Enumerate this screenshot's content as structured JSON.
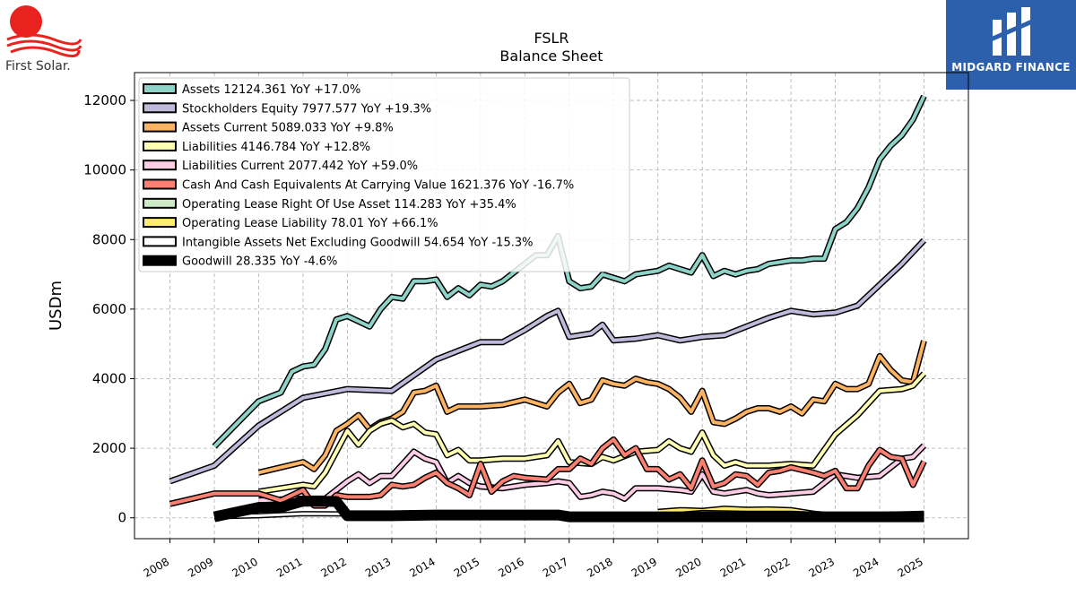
{
  "logos": {
    "left_text": "First Solar.",
    "right_text": "MIDGARD FINANCE"
  },
  "colors": {
    "background": "#ffffff",
    "grid": "#b0b0b0",
    "brand_blue": "#2c5fac",
    "first_solar_red": "#e8231f"
  },
  "chart_data": {
    "type": "line",
    "title": "FSLR",
    "subtitle": "Balance  Sheet",
    "ylabel": "USDm",
    "xlabel": "",
    "xlim": [
      2007.2,
      2026.0
    ],
    "ylim": [
      -600,
      12800
    ],
    "yticks": [
      0,
      2000,
      4000,
      6000,
      8000,
      10000,
      12000
    ],
    "xticks": [
      2008,
      2009,
      2010,
      2011,
      2012,
      2013,
      2014,
      2015,
      2016,
      2017,
      2018,
      2019,
      2020,
      2021,
      2022,
      2023,
      2024,
      2025
    ],
    "grid": true,
    "legend_position": "top-left",
    "series": [
      {
        "name": "Assets",
        "legend": "Assets  12124.361 YoY +17.0%",
        "color": "#8dd3c7",
        "width": 4,
        "x": [
          2009.0,
          2010.0,
          2010.5,
          2010.75,
          2011.0,
          2011.25,
          2011.5,
          2011.75,
          2012.0,
          2012.25,
          2012.5,
          2012.75,
          2013.0,
          2013.25,
          2013.5,
          2013.75,
          2014.0,
          2014.25,
          2014.5,
          2014.75,
          2015.0,
          2015.25,
          2015.5,
          2015.75,
          2016.0,
          2016.25,
          2016.5,
          2016.75,
          2017.0,
          2017.25,
          2017.5,
          2017.75,
          2018.0,
          2018.25,
          2018.5,
          2018.75,
          2019.0,
          2019.25,
          2019.5,
          2019.75,
          2020.0,
          2020.25,
          2020.5,
          2020.75,
          2021.0,
          2021.25,
          2021.5,
          2021.75,
          2022.0,
          2022.25,
          2022.5,
          2022.75,
          2023.0,
          2023.25,
          2023.5,
          2023.75,
          2024.0,
          2024.25,
          2024.5,
          2024.75,
          2025.0
        ],
        "y": [
          2050,
          3350,
          3600,
          4200,
          4350,
          4400,
          4850,
          5700,
          5800,
          5650,
          5500,
          6000,
          6350,
          6300,
          6800,
          6800,
          6850,
          6350,
          6600,
          6400,
          6700,
          6650,
          6800,
          7050,
          7300,
          7550,
          7550,
          8100,
          6800,
          6600,
          6650,
          7000,
          6900,
          6800,
          7000,
          7050,
          7100,
          7250,
          7150,
          7050,
          7550,
          6950,
          7100,
          7000,
          7100,
          7150,
          7300,
          7350,
          7400,
          7400,
          7450,
          7450,
          8300,
          8500,
          8900,
          9500,
          10300,
          10700,
          11000,
          11450,
          12124
        ]
      },
      {
        "name": "Stockholders Equity",
        "legend": "Stockholders Equity  7977.577 YoY +19.3%",
        "color": "#bebada",
        "width": 4,
        "x": [
          2008.0,
          2009.0,
          2010.0,
          2011.0,
          2012.0,
          2013.0,
          2014.0,
          2015.0,
          2015.5,
          2016.0,
          2016.5,
          2016.75,
          2017.0,
          2017.5,
          2017.75,
          2018.0,
          2018.5,
          2019.0,
          2019.5,
          2020.0,
          2020.5,
          2021.0,
          2021.5,
          2022.0,
          2022.5,
          2023.0,
          2023.5,
          2024.0,
          2024.5,
          2025.0
        ],
        "y": [
          1050,
          1500,
          2650,
          3450,
          3700,
          3650,
          4550,
          5050,
          5050,
          5400,
          5800,
          5950,
          5200,
          5300,
          5550,
          5100,
          5150,
          5250,
          5100,
          5200,
          5250,
          5500,
          5750,
          5950,
          5850,
          5900,
          6100,
          6700,
          7300,
          7978
        ]
      },
      {
        "name": "Assets Current",
        "legend": "Assets Current  5089.033 YoY +9.8%",
        "color": "#fdb462",
        "width": 4,
        "x": [
          2010.0,
          2011.0,
          2011.25,
          2011.5,
          2011.75,
          2012.0,
          2012.25,
          2012.5,
          2012.75,
          2013.0,
          2013.25,
          2013.5,
          2013.75,
          2014.0,
          2014.25,
          2014.5,
          2015.0,
          2015.5,
          2016.0,
          2016.5,
          2016.75,
          2017.0,
          2017.25,
          2017.5,
          2017.75,
          2018.0,
          2018.25,
          2018.5,
          2018.75,
          2019.0,
          2019.25,
          2019.5,
          2019.75,
          2020.0,
          2020.25,
          2020.5,
          2020.75,
          2021.0,
          2021.25,
          2021.5,
          2021.75,
          2022.0,
          2022.25,
          2022.5,
          2022.75,
          2023.0,
          2023.25,
          2023.5,
          2023.75,
          2024.0,
          2024.25,
          2024.5,
          2024.75,
          2025.0
        ],
        "y": [
          1300,
          1600,
          1400,
          1800,
          2500,
          2700,
          2950,
          2550,
          2750,
          2850,
          3050,
          3600,
          3650,
          3800,
          3050,
          3200,
          3200,
          3250,
          3400,
          3200,
          3600,
          3850,
          3300,
          3400,
          3950,
          3850,
          3800,
          4000,
          3900,
          3850,
          3700,
          3450,
          3050,
          3650,
          2750,
          2700,
          2850,
          3050,
          3150,
          3150,
          3050,
          3200,
          3000,
          3400,
          3350,
          3850,
          3700,
          3700,
          3850,
          4650,
          4250,
          3950,
          3900,
          5089
        ]
      },
      {
        "name": "Liabilities",
        "legend": "Liabilities  4146.784 YoY +12.8%",
        "color": "#ffffb3",
        "width": 4,
        "x": [
          2010.0,
          2011.0,
          2011.25,
          2011.5,
          2011.75,
          2012.0,
          2012.25,
          2012.5,
          2012.75,
          2013.0,
          2013.25,
          2013.5,
          2013.75,
          2014.0,
          2014.25,
          2014.5,
          2014.75,
          2015.0,
          2015.5,
          2016.0,
          2016.5,
          2016.75,
          2017.0,
          2017.5,
          2017.75,
          2018.0,
          2018.5,
          2019.0,
          2019.25,
          2019.5,
          2019.75,
          2020.0,
          2020.25,
          2020.5,
          2020.75,
          2021.0,
          2021.5,
          2022.0,
          2022.5,
          2023.0,
          2023.5,
          2024.0,
          2024.5,
          2024.75,
          2025.0
        ],
        "y": [
          750,
          950,
          900,
          1300,
          1900,
          2500,
          2100,
          2500,
          2700,
          2800,
          2600,
          2700,
          2450,
          2400,
          1800,
          1950,
          1650,
          1650,
          1700,
          1700,
          1800,
          2200,
          1600,
          1550,
          1750,
          1650,
          1900,
          1950,
          2200,
          2000,
          1900,
          2450,
          1800,
          1500,
          1600,
          1500,
          1500,
          1550,
          1500,
          2400,
          2950,
          3650,
          3700,
          3800,
          4147
        ]
      },
      {
        "name": "Liabilities Current",
        "legend": "Liabilities Current  2077.442 YoY +59.0%",
        "color": "#fccde5",
        "width": 4,
        "x": [
          2010.0,
          2011.0,
          2011.5,
          2011.75,
          2012.0,
          2012.25,
          2012.5,
          2012.75,
          2013.0,
          2013.25,
          2013.5,
          2013.75,
          2014.0,
          2014.25,
          2014.5,
          2014.75,
          2015.0,
          2015.5,
          2016.0,
          2016.5,
          2016.75,
          2017.0,
          2017.25,
          2017.5,
          2017.75,
          2018.0,
          2018.25,
          2018.5,
          2019.0,
          2019.5,
          2019.75,
          2020.0,
          2020.25,
          2020.5,
          2021.0,
          2021.25,
          2021.5,
          2022.0,
          2022.5,
          2023.0,
          2023.5,
          2024.0,
          2024.5,
          2024.75,
          2025.0
        ],
        "y": [
          500,
          550,
          550,
          800,
          1050,
          1250,
          1000,
          1200,
          1200,
          1550,
          1900,
          1700,
          1600,
          1000,
          1200,
          1000,
          900,
          850,
          950,
          1000,
          1050,
          1000,
          600,
          650,
          750,
          700,
          550,
          850,
          850,
          800,
          750,
          1250,
          750,
          700,
          800,
          700,
          650,
          700,
          750,
          1250,
          1150,
          1200,
          1700,
          1750,
          2077
        ]
      },
      {
        "name": "Cash And Cash Equivalents At Carrying Value",
        "legend": "Cash And Cash Equivalents At Carrying Value  1621.376 YoY -16.7%",
        "color": "#fb8072",
        "width": 4,
        "x": [
          2008.0,
          2009.0,
          2010.0,
          2010.5,
          2011.0,
          2011.25,
          2011.5,
          2011.75,
          2012.0,
          2012.5,
          2012.75,
          2013.0,
          2013.25,
          2013.5,
          2013.75,
          2014.0,
          2014.25,
          2014.5,
          2014.75,
          2015.0,
          2015.25,
          2015.5,
          2015.75,
          2016.0,
          2016.5,
          2016.75,
          2017.0,
          2017.25,
          2017.5,
          2017.75,
          2018.0,
          2018.25,
          2018.5,
          2018.75,
          2019.0,
          2019.25,
          2019.5,
          2019.75,
          2020.0,
          2020.25,
          2020.5,
          2020.75,
          2021.0,
          2021.25,
          2021.5,
          2021.75,
          2022.0,
          2022.5,
          2022.75,
          2023.0,
          2023.25,
          2023.5,
          2023.75,
          2024.0,
          2024.25,
          2024.5,
          2024.75,
          2025.0
        ],
        "y": [
          400,
          700,
          700,
          500,
          800,
          350,
          350,
          650,
          600,
          600,
          650,
          950,
          900,
          950,
          1150,
          1300,
          1000,
          850,
          650,
          1550,
          750,
          1050,
          1200,
          1150,
          1100,
          1400,
          1400,
          1700,
          1550,
          2000,
          2250,
          1800,
          2000,
          1400,
          1400,
          1100,
          1250,
          850,
          1650,
          900,
          1000,
          1250,
          1200,
          950,
          1300,
          1350,
          1450,
          1300,
          1200,
          1350,
          850,
          850,
          1500,
          1950,
          1750,
          1700,
          950,
          1621
        ]
      },
      {
        "name": "Operating Lease Right Of Use Asset",
        "legend": "Operating Lease Right Of Use Asset  114.283 YoY +35.4%",
        "color": "#ccebc5",
        "width": 4,
        "x": [
          2019.0,
          2020.0,
          2021.0,
          2022.0,
          2023.0,
          2024.0,
          2025.0
        ],
        "y": [
          130,
          110,
          110,
          90,
          80,
          85,
          114
        ]
      },
      {
        "name": "Operating Lease Liability",
        "legend": "Operating Lease Liability  78.01 YoY +66.1%",
        "color": "#ffed6f",
        "width": 4,
        "x": [
          2019.0,
          2019.5,
          2020.0,
          2020.5,
          2021.0,
          2021.5,
          2022.0,
          2022.5,
          2023.0,
          2024.0,
          2025.0
        ],
        "y": [
          170,
          220,
          200,
          260,
          230,
          240,
          220,
          120,
          60,
          50,
          78
        ]
      },
      {
        "name": "Intangible Assets Net Excluding Goodwill",
        "legend": "Intangible Assets Net Excluding Goodwill  54.654 YoY -15.3%",
        "color": "#ffffff",
        "width": 3,
        "x": [
          2009.0,
          2010.0,
          2011.0,
          2012.0,
          2013.0,
          2014.0,
          2015.0,
          2016.0,
          2017.0,
          2018.0,
          2019.0,
          2020.0,
          2021.0,
          2022.0,
          2023.0,
          2024.0,
          2025.0
        ],
        "y": [
          30,
          60,
          120,
          110,
          100,
          100,
          120,
          120,
          90,
          80,
          50,
          150,
          130,
          130,
          80,
          65,
          55
        ]
      },
      {
        "name": "Goodwill",
        "legend": "Goodwill  28.335 YoY -4.6%",
        "color": "#000000",
        "width": 9,
        "x": [
          2009.0,
          2010.0,
          2010.5,
          2011.0,
          2011.75,
          2012.0,
          2013.0,
          2014.0,
          2015.0,
          2016.0,
          2016.75,
          2017.0,
          2018.0,
          2019.0,
          2020.0,
          2021.0,
          2022.0,
          2023.0,
          2024.0,
          2024.75,
          2025.0
        ],
        "y": [
          30,
          300,
          300,
          480,
          470,
          60,
          60,
          80,
          80,
          80,
          80,
          30,
          30,
          30,
          30,
          30,
          30,
          30,
          30,
          30,
          28
        ]
      }
    ]
  }
}
